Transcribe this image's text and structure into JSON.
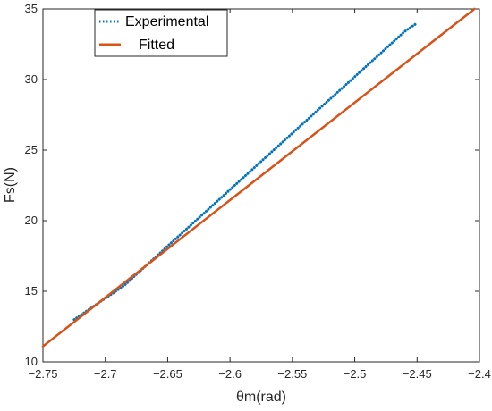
{
  "chart_data": {
    "type": "line",
    "xlabel": "θm(rad)",
    "ylabel": "Fs(N)",
    "xlim": [
      -2.75,
      -2.4
    ],
    "ylim": [
      10,
      35
    ],
    "x_ticks": [
      -2.75,
      -2.7,
      -2.65,
      -2.6,
      -2.55,
      -2.5,
      -2.45,
      -2.4
    ],
    "x_tick_labels": [
      "−2.75",
      "−2.7",
      "−2.65",
      "−2.6",
      "−2.55",
      "−2.5",
      "−2.45",
      "−2.4"
    ],
    "y_ticks": [
      10,
      15,
      20,
      25,
      30,
      35
    ],
    "y_tick_labels": [
      "10",
      "15",
      "20",
      "25",
      "30",
      "35"
    ],
    "grid": false,
    "legend_position": "top-left",
    "series": [
      {
        "name": "Experimental",
        "style": "dotted",
        "color": "#0072BD",
        "points": [
          [
            -2.725,
            13.0
          ],
          [
            -2.72,
            13.3
          ],
          [
            -2.715,
            13.6
          ],
          [
            -2.71,
            13.9
          ],
          [
            -2.705,
            14.2
          ],
          [
            -2.7,
            14.5
          ],
          [
            -2.695,
            14.8
          ],
          [
            -2.69,
            15.1
          ],
          [
            -2.685,
            15.4
          ],
          [
            -2.68,
            15.8
          ],
          [
            -2.675,
            16.2
          ],
          [
            -2.67,
            16.6
          ],
          [
            -2.665,
            17.0
          ],
          [
            -2.66,
            17.4
          ],
          [
            -2.655,
            17.8
          ],
          [
            -2.65,
            18.2
          ],
          [
            -2.645,
            18.6
          ],
          [
            -2.64,
            19.0
          ],
          [
            -2.635,
            19.4
          ],
          [
            -2.63,
            19.8
          ],
          [
            -2.625,
            20.2
          ],
          [
            -2.62,
            20.6
          ],
          [
            -2.615,
            21.0
          ],
          [
            -2.61,
            21.4
          ],
          [
            -2.605,
            21.8
          ],
          [
            -2.6,
            22.2
          ],
          [
            -2.595,
            22.6
          ],
          [
            -2.59,
            23.0
          ],
          [
            -2.585,
            23.4
          ],
          [
            -2.58,
            23.8
          ],
          [
            -2.575,
            24.2
          ],
          [
            -2.57,
            24.6
          ],
          [
            -2.565,
            25.0
          ],
          [
            -2.56,
            25.4
          ],
          [
            -2.555,
            25.8
          ],
          [
            -2.55,
            26.2
          ],
          [
            -2.545,
            26.6
          ],
          [
            -2.54,
            27.0
          ],
          [
            -2.535,
            27.4
          ],
          [
            -2.53,
            27.8
          ],
          [
            -2.525,
            28.2
          ],
          [
            -2.52,
            28.6
          ],
          [
            -2.515,
            29.0
          ],
          [
            -2.51,
            29.4
          ],
          [
            -2.505,
            29.8
          ],
          [
            -2.5,
            30.2
          ],
          [
            -2.495,
            30.6
          ],
          [
            -2.49,
            31.0
          ],
          [
            -2.485,
            31.4
          ],
          [
            -2.48,
            31.8
          ],
          [
            -2.475,
            32.2
          ],
          [
            -2.47,
            32.6
          ],
          [
            -2.465,
            33.0
          ],
          [
            -2.46,
            33.4
          ],
          [
            -2.455,
            33.7
          ],
          [
            -2.45,
            34.0
          ]
        ]
      },
      {
        "name": "Fitted",
        "style": "solid",
        "color": "#D95319",
        "points": [
          [
            -2.75,
            11.1
          ],
          [
            -2.404,
            35.0
          ]
        ]
      }
    ]
  }
}
